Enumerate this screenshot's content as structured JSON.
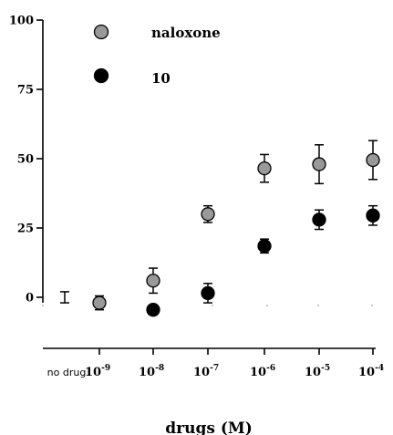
{
  "chart_data": {
    "type": "scatter",
    "xlabel": "drugs (M)",
    "ylabel": "",
    "ylim": [
      -10,
      100
    ],
    "yticks": [
      0,
      25,
      50,
      75,
      100
    ],
    "x_categories": [
      {
        "label": "no drug",
        "base": "",
        "exp": ""
      },
      {
        "label": "",
        "base": "10",
        "exp": "-9"
      },
      {
        "label": "",
        "base": "10",
        "exp": "-8"
      },
      {
        "label": "",
        "base": "10",
        "exp": "-7"
      },
      {
        "label": "",
        "base": "10",
        "exp": "-6"
      },
      {
        "label": "",
        "base": "10",
        "exp": "-5"
      },
      {
        "label": "",
        "base": "10",
        "exp": "-4"
      }
    ],
    "legend_position": "top-left",
    "grid": false,
    "baseline": {
      "category_index": 0,
      "value": 0,
      "err_high": 2,
      "err_low": 2
    },
    "series": [
      {
        "name": "naloxone",
        "color": "#999999",
        "points": [
          {
            "category_index": 1,
            "y": -2,
            "err": 2.5
          },
          {
            "category_index": 2,
            "y": 6,
            "err": 4.5
          },
          {
            "category_index": 3,
            "y": 30,
            "err": 3
          },
          {
            "category_index": 4,
            "y": 46.5,
            "err": 5
          },
          {
            "category_index": 5,
            "y": 48,
            "err": 7
          },
          {
            "category_index": 6,
            "y": 49.5,
            "err": 7
          }
        ]
      },
      {
        "name": "10",
        "color": "#000000",
        "points": [
          {
            "category_index": 1,
            "y": null,
            "err": null
          },
          {
            "category_index": 2,
            "y": -4.5,
            "err": 1.5
          },
          {
            "category_index": 3,
            "y": 1.5,
            "err": 3.5
          },
          {
            "category_index": 4,
            "y": 18.5,
            "err": 2.5
          },
          {
            "category_index": 5,
            "y": 28,
            "err": 3.5
          },
          {
            "category_index": 6,
            "y": 29.5,
            "err": 3.5
          }
        ]
      }
    ]
  }
}
